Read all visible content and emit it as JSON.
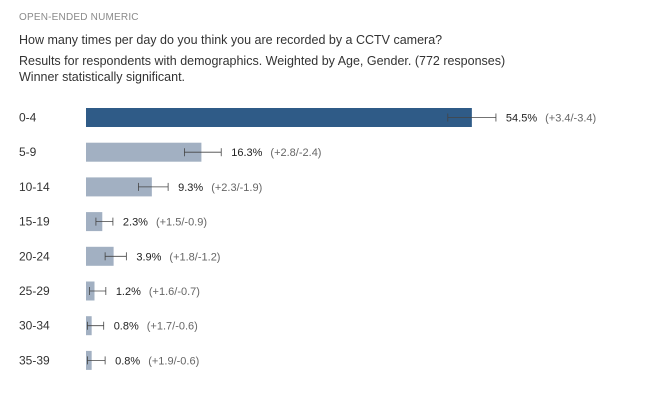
{
  "header": {
    "question_type": "OPEN-ENDED NUMERIC",
    "question": "How many times per day do you think you are recorded by a CCTV camera?",
    "results_note": "Results for respondents with demographics. Weighted by Age, Gender. (772 responses)",
    "significance_note": "Winner statistically significant."
  },
  "colors": {
    "winner_bar": "#2f5b87",
    "other_bar": "#a2b0c2",
    "error_bar": "#444444"
  },
  "chart_data": {
    "type": "bar",
    "orientation": "horizontal",
    "categories": [
      "0-4",
      "5-9",
      "10-14",
      "15-19",
      "20-24",
      "25-29",
      "30-34",
      "35-39"
    ],
    "values": [
      54.5,
      16.3,
      9.3,
      2.3,
      3.9,
      1.2,
      0.8,
      0.8
    ],
    "value_labels": [
      "54.5%",
      "16.3%",
      "9.3%",
      "2.3%",
      "3.9%",
      "1.2%",
      "0.8%",
      "0.8%"
    ],
    "error_plus": [
      3.4,
      2.8,
      2.3,
      1.5,
      1.8,
      1.6,
      1.7,
      1.9
    ],
    "error_minus": [
      3.4,
      2.4,
      1.9,
      0.9,
      1.2,
      0.7,
      0.6,
      0.6
    ],
    "ci_labels": [
      "(+3.4/-3.4)",
      "(+2.8/-2.4)",
      "(+2.3/-1.9)",
      "(+1.5/-0.9)",
      "(+1.8/-1.2)",
      "(+1.6/-0.7)",
      "(+1.7/-0.6)",
      "(+1.9/-0.6)"
    ],
    "highlight_index": 0,
    "title": "",
    "xlabel": "",
    "ylabel": "",
    "grid": false
  }
}
